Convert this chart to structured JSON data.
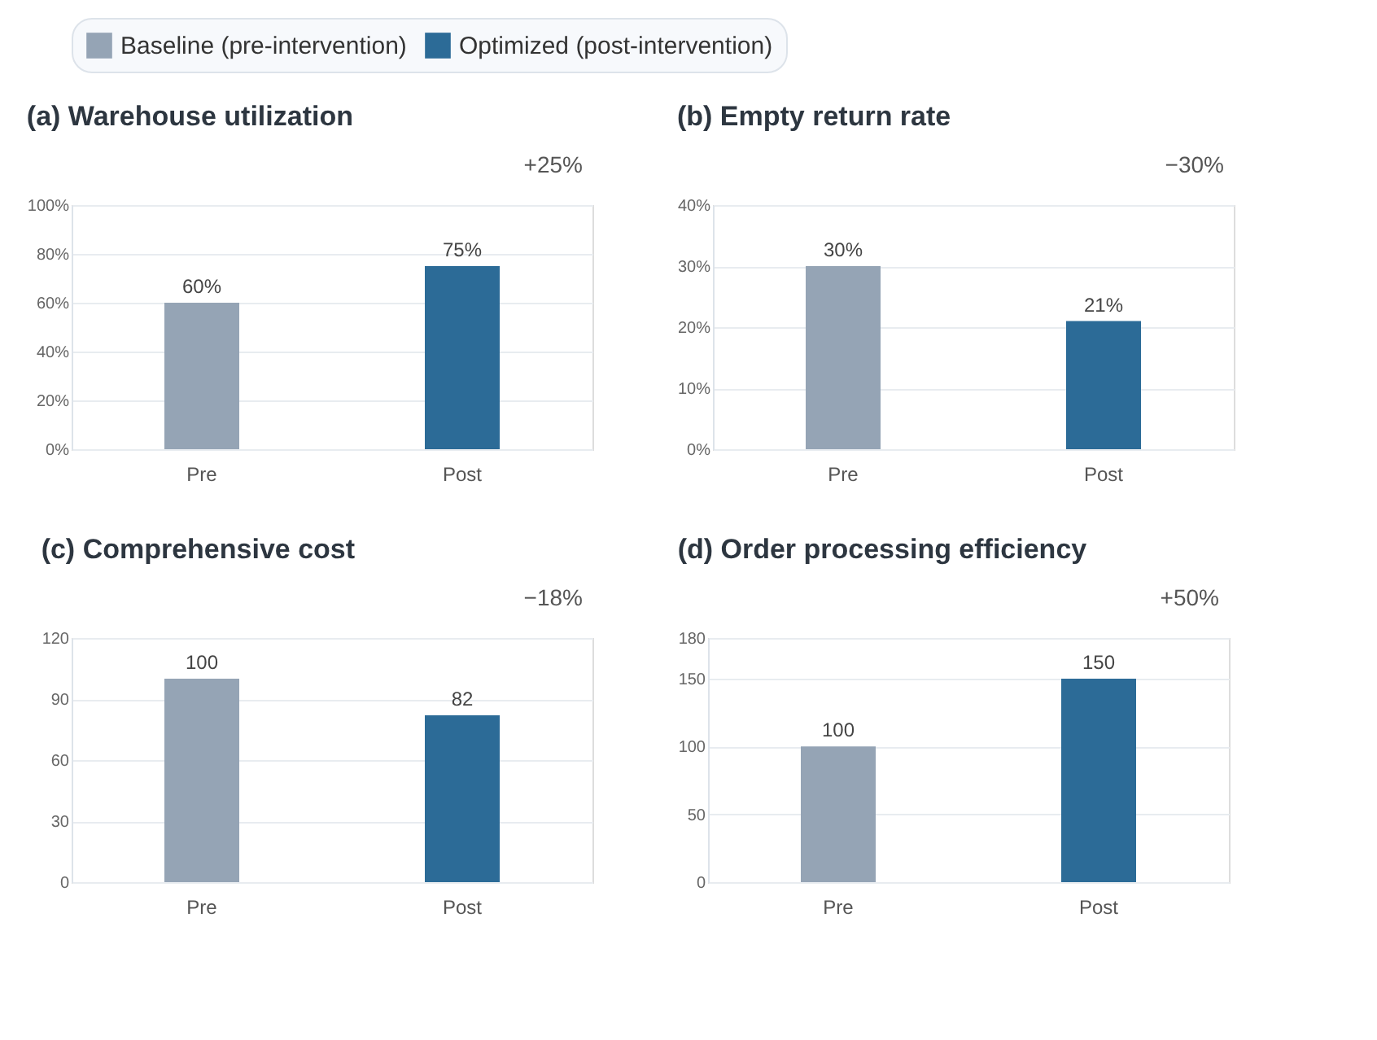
{
  "chart_data": [
    {
      "type": "bar",
      "title": "(a) Warehouse utilization",
      "annotations": [
        "+25%"
      ],
      "categories": [
        "Pre",
        "Post"
      ],
      "series": [
        {
          "name": "Baseline (pre-intervention)",
          "color": "#95a4b5",
          "values": [
            60,
            null
          ],
          "value_labels": [
            "60%",
            null
          ]
        },
        {
          "name": "Optimized (post-intervention)",
          "color": "#2c6b97",
          "values": [
            null,
            75
          ],
          "value_labels": [
            null,
            "75%"
          ]
        }
      ],
      "ylim": [
        0,
        100
      ],
      "yticks": [
        {
          "value": 0,
          "label": "0%"
        },
        {
          "value": 20,
          "label": "20%"
        },
        {
          "value": 40,
          "label": "40%"
        },
        {
          "value": 60,
          "label": "60%"
        },
        {
          "value": 80,
          "label": "80%"
        },
        {
          "value": 100,
          "label": "100%"
        }
      ],
      "grid": "y",
      "legend": "top right"
    },
    {
      "type": "bar",
      "title": "(b) Empty return rate",
      "annotations": [
        "−30%"
      ],
      "categories": [
        "Pre",
        "Post"
      ],
      "series": [
        {
          "name": "Baseline (pre-intervention)",
          "color": "#95a4b5",
          "values": [
            30,
            null
          ],
          "value_labels": [
            "30%",
            null
          ]
        },
        {
          "name": "Optimized (post-intervention)",
          "color": "#2c6b97",
          "values": [
            null,
            21
          ],
          "value_labels": [
            null,
            "21%"
          ]
        }
      ],
      "ylim": [
        0,
        40
      ],
      "yticks": [
        {
          "value": 0,
          "label": "0%"
        },
        {
          "value": 10,
          "label": "10%"
        },
        {
          "value": 20,
          "label": "20%"
        },
        {
          "value": 30,
          "label": "30%"
        },
        {
          "value": 40,
          "label": "40%"
        }
      ],
      "grid": "y"
    },
    {
      "type": "bar",
      "title": "(c) Comprehensive cost",
      "annotations": [
        "−18%"
      ],
      "categories": [
        "Pre",
        "Post"
      ],
      "series": [
        {
          "name": "Baseline (pre-intervention)",
          "color": "#95a4b5",
          "values": [
            100,
            null
          ]
        },
        {
          "name": "Optimized (post-intervention)",
          "color": "#2c6b97",
          "values": [
            null,
            82
          ]
        }
      ],
      "ylim": [
        0,
        120
      ],
      "yticks": [
        0,
        30,
        60,
        90,
        120
      ],
      "grid": "y",
      "data_labels": true
    },
    {
      "type": "bar",
      "title": "(d) Order processing efficiency",
      "annotations": [
        "+50%"
      ],
      "categories": [
        "Pre",
        "Post"
      ],
      "series": [
        {
          "name": "Baseline (pre-intervention)",
          "color": "#95a4b5",
          "values": [
            100,
            null
          ]
        },
        {
          "name": "Optimized (post-intervention)",
          "color": "#2c6b97",
          "values": [
            null,
            150
          ]
        }
      ],
      "ylim": [
        0,
        180
      ],
      "yticks": [
        0,
        50,
        100,
        150,
        180
      ],
      "grid": "y",
      "data_labels": true
    }
  ]
}
